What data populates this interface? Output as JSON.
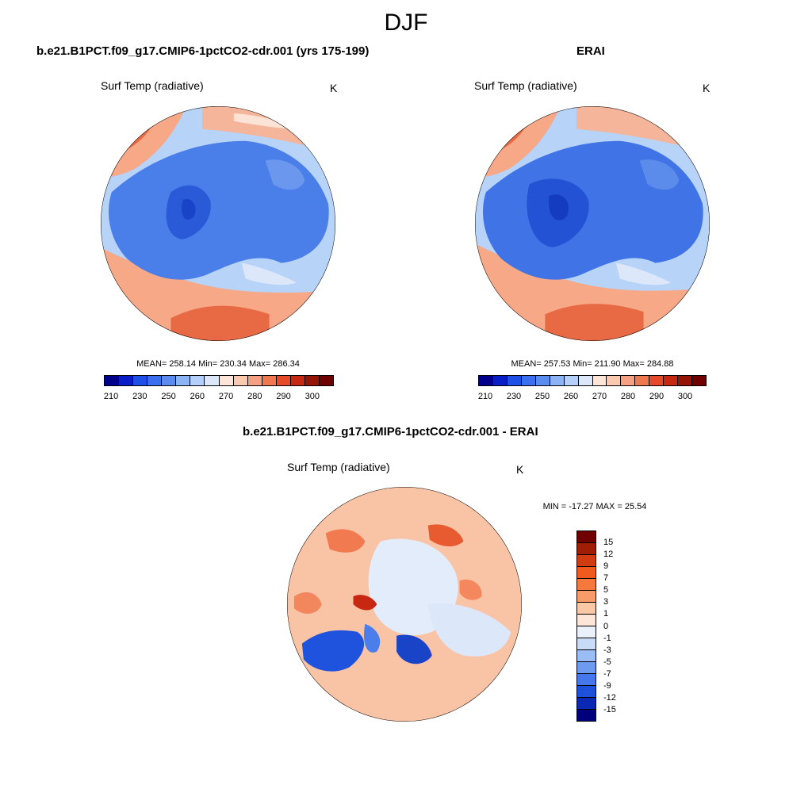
{
  "figure": {
    "season": "DJF"
  },
  "panels": {
    "model": {
      "title": "b.e21.B1PCT.f09_g17.CMIP6-1pctCO2-cdr.001 (yrs 175-199)",
      "variable": "Surf Temp (radiative)",
      "units": "K",
      "stats": "MEAN= 258.14  Min= 230.34  Max= 286.34"
    },
    "obs": {
      "title": "ERAI",
      "variable": "Surf Temp (radiative)",
      "units": "K",
      "stats": "MEAN= 257.53  Min= 211.90  Max= 284.88"
    },
    "diff": {
      "title": "b.e21.B1PCT.f09_g17.CMIP6-1pctCO2-cdr.001 - ERAI",
      "variable": "Surf Temp (radiative)",
      "units": "K",
      "stats": "MIN = -17.27 MAX =  25.54"
    }
  },
  "colorbars": {
    "absolute": {
      "tick_labels": [
        "210",
        "230",
        "250",
        "260",
        "270",
        "280",
        "290",
        "300"
      ],
      "colors": [
        "#00008b",
        "#0a1ec8",
        "#1e50e6",
        "#3c6ef0",
        "#5a8cf0",
        "#8cb4f5",
        "#b4d0f8",
        "#dce8fa",
        "#fde6d8",
        "#fbc8b0",
        "#f5a082",
        "#f07850",
        "#e64a28",
        "#c82812",
        "#961405",
        "#700000"
      ]
    },
    "difference": {
      "tick_labels": [
        "15",
        "12",
        "9",
        "7",
        "5",
        "3",
        "1",
        "0",
        "-1",
        "-3",
        "-5",
        "-7",
        "-9",
        "-12",
        "-15"
      ],
      "colors": [
        "#700000",
        "#a01e05",
        "#d23c12",
        "#f05a1e",
        "#f5783c",
        "#f79b69",
        "#fbc8a5",
        "#fde6d8",
        "#eaf1fb",
        "#c8dcf8",
        "#9bbdf5",
        "#6e9bf0",
        "#4678eb",
        "#1e50dc",
        "#0a28b4",
        "#00007d"
      ]
    }
  }
}
